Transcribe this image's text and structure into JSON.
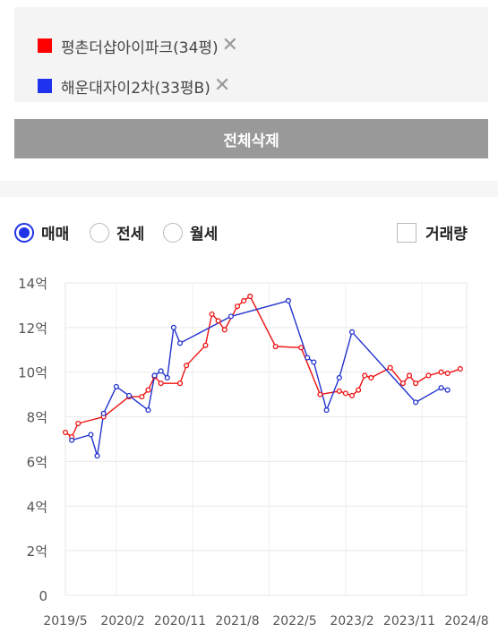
{
  "legend": [
    {
      "label": "평촌더샵아이파크(34평)",
      "color": "#ff0000"
    },
    {
      "label": "해운대자이2차(33평B)",
      "color": "#1f33ee"
    }
  ],
  "remove_icon": "close-icon",
  "delete_all_label": "전체삭제",
  "radio_options": [
    {
      "label": "매매",
      "selected": true
    },
    {
      "label": "전세",
      "selected": false
    },
    {
      "label": "월세",
      "selected": false
    }
  ],
  "volume_label": "거래량",
  "chart_data": {
    "type": "line",
    "ylim": [
      0,
      14
    ],
    "y_ticks": [
      {
        "value": 0,
        "label": "0"
      },
      {
        "value": 2,
        "label": "2억"
      },
      {
        "value": 4,
        "label": "4억"
      },
      {
        "value": 6,
        "label": "6억"
      },
      {
        "value": 8,
        "label": "8억"
      },
      {
        "value": 10,
        "label": "10억"
      },
      {
        "value": 12,
        "label": "12억"
      },
      {
        "value": 14,
        "label": "14억"
      }
    ],
    "x_range": [
      "2019-05",
      "2024-08"
    ],
    "x_ticks": [
      "2019/5",
      "2020/2",
      "2020/11",
      "2021/8",
      "2022/5",
      "2023/2",
      "2023/11",
      "2024/8"
    ],
    "series": [
      {
        "name": "평촌더샵아이파크(34평)",
        "color": "#ee1111",
        "points": [
          [
            "2019-05",
            7.3
          ],
          [
            "2019-06",
            7.1
          ],
          [
            "2019-07",
            7.7
          ],
          [
            "2019-11",
            8.0
          ],
          [
            "2020-03",
            8.9
          ],
          [
            "2020-05",
            8.9
          ],
          [
            "2020-06",
            9.2
          ],
          [
            "2020-07",
            9.8
          ],
          [
            "2020-08",
            9.5
          ],
          [
            "2020-11",
            9.5
          ],
          [
            "2020-12",
            10.3
          ],
          [
            "2021-03",
            11.2
          ],
          [
            "2021-04",
            12.6
          ],
          [
            "2021-05",
            12.3
          ],
          [
            "2021-06",
            11.9
          ],
          [
            "2021-08",
            12.95
          ],
          [
            "2021-09",
            13.2
          ],
          [
            "2021-10",
            13.4
          ],
          [
            "2022-02",
            11.15
          ],
          [
            "2022-06",
            11.1
          ],
          [
            "2022-09",
            9.0
          ],
          [
            "2022-12",
            9.15
          ],
          [
            "2023-01",
            9.05
          ],
          [
            "2023-02",
            8.95
          ],
          [
            "2023-03",
            9.2
          ],
          [
            "2023-04",
            9.85
          ],
          [
            "2023-05",
            9.75
          ],
          [
            "2023-08",
            10.2
          ],
          [
            "2023-10",
            9.5
          ],
          [
            "2023-11",
            9.85
          ],
          [
            "2023-12",
            9.5
          ],
          [
            "2024-02",
            9.85
          ],
          [
            "2024-04",
            10.0
          ],
          [
            "2024-05",
            9.95
          ],
          [
            "2024-07",
            10.15
          ]
        ]
      },
      {
        "name": "해운대자이2차(33평B)",
        "color": "#2233cc",
        "points": [
          [
            "2019-06",
            6.95
          ],
          [
            "2019-09",
            7.2
          ],
          [
            "2019-10",
            6.25
          ],
          [
            "2019-11",
            8.15
          ],
          [
            "2020-01",
            9.35
          ],
          [
            "2020-03",
            8.95
          ],
          [
            "2020-06",
            8.3
          ],
          [
            "2020-07",
            9.85
          ],
          [
            "2020-08",
            10.05
          ],
          [
            "2020-09",
            9.75
          ],
          [
            "2020-10",
            12.0
          ],
          [
            "2020-11",
            11.3
          ],
          [
            "2021-07",
            12.5
          ],
          [
            "2022-04",
            13.2
          ],
          [
            "2022-07",
            10.65
          ],
          [
            "2022-08",
            10.45
          ],
          [
            "2022-10",
            8.3
          ],
          [
            "2022-12",
            9.75
          ],
          [
            "2023-02",
            11.8
          ],
          [
            "2023-12",
            8.65
          ],
          [
            "2024-04",
            9.3
          ],
          [
            "2024-05",
            9.2
          ]
        ]
      }
    ]
  }
}
